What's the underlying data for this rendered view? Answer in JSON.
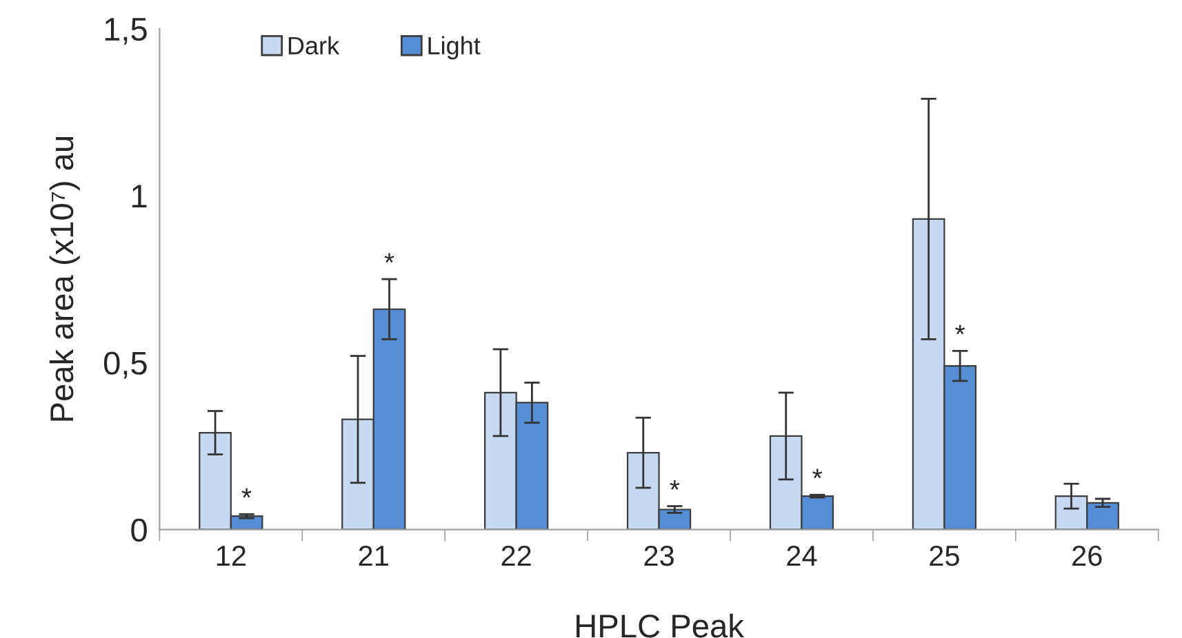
{
  "chart_data": {
    "type": "bar",
    "xlabel": "HPLC Peak",
    "ylabel": "Peak area (x10⁷) au",
    "categories": [
      "12",
      "21",
      "22",
      "23",
      "24",
      "25",
      "26"
    ],
    "series": [
      {
        "name": "Dark",
        "color": "#c6d9f1",
        "values": [
          0.29,
          0.33,
          0.41,
          0.23,
          0.28,
          0.93,
          0.1
        ],
        "errors": [
          0.065,
          0.19,
          0.13,
          0.105,
          0.13,
          0.36,
          0.037
        ]
      },
      {
        "name": "Light",
        "color": "#558ed5",
        "values": [
          0.04,
          0.66,
          0.38,
          0.06,
          0.1,
          0.49,
          0.08
        ],
        "errors": [
          0.006,
          0.09,
          0.06,
          0.01,
          0.004,
          0.045,
          0.012
        ]
      }
    ],
    "annotations": [
      {
        "text": "*",
        "x": "12",
        "y": 0.04
      },
      {
        "text": "*",
        "x": "21",
        "y": 0.66
      },
      {
        "text": "*",
        "x": "23",
        "y": 0.06
      },
      {
        "text": "*",
        "x": "24",
        "y": 0.1
      },
      {
        "text": "*",
        "x": "25",
        "y": 0.49
      }
    ],
    "ylim": [
      0,
      1.5
    ],
    "yticks": [
      0,
      {
        "value": 0.5,
        "label": "0,5"
      },
      1,
      {
        "value": 1.5,
        "label": "1,5"
      }
    ],
    "legend": "top left",
    "grid": false
  }
}
